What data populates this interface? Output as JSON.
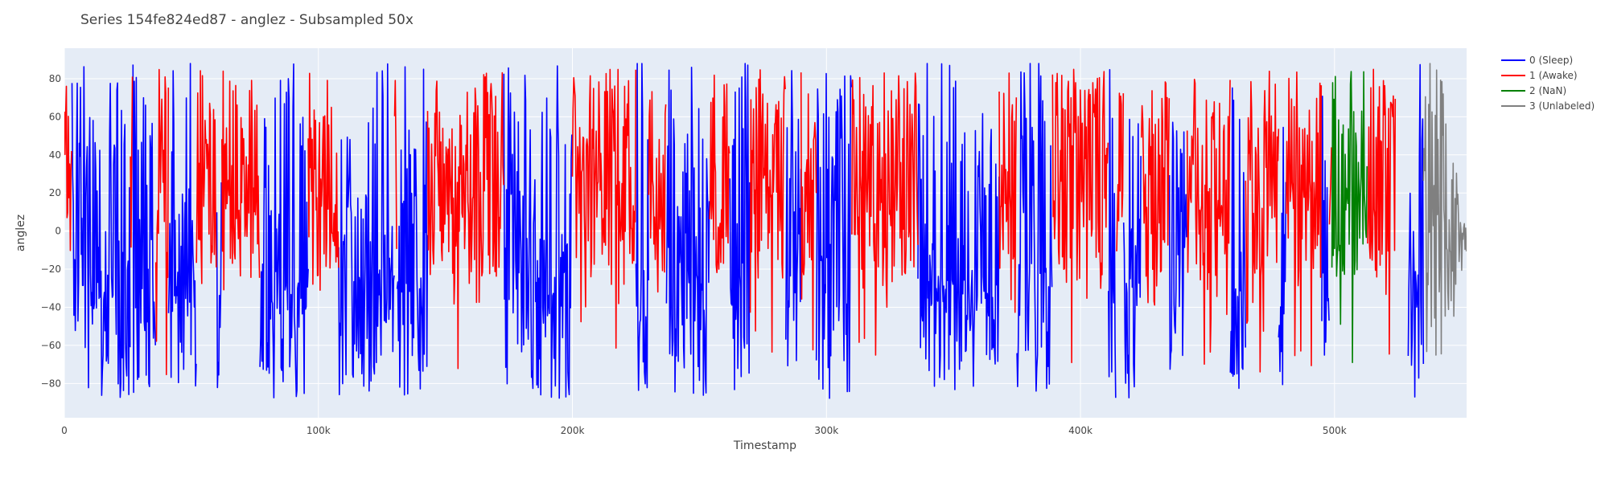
{
  "chart_data": {
    "type": "line",
    "title": "Series 154fe824ed87 - anglez - Subsampled 50x",
    "xlabel": "Timestamp",
    "ylabel": "anglez",
    "xlim": [
      0,
      552000
    ],
    "ylim": [
      -98,
      96
    ],
    "x_ticks": [
      0,
      100000,
      200000,
      300000,
      400000,
      500000
    ],
    "x_tick_labels": [
      "0",
      "100k",
      "200k",
      "300k",
      "400k",
      "500k"
    ],
    "y_ticks": [
      -80,
      -60,
      -40,
      -20,
      0,
      20,
      40,
      60,
      80
    ],
    "y_tick_labels": [
      "−80",
      "−60",
      "−40",
      "−20",
      "0",
      "20",
      "40",
      "60",
      "80"
    ],
    "grid": true,
    "legend_position": "top-right",
    "series": [
      {
        "name": "0 (Sleep)",
        "color": "#0000ff",
        "segments": [
          [
            3000,
            26000
          ],
          [
            27000,
            36000
          ],
          [
            41000,
            52000
          ],
          [
            60000,
            62000
          ],
          [
            77000,
            96000
          ],
          [
            108000,
            130000
          ],
          [
            131000,
            143000
          ],
          [
            173000,
            200000
          ],
          [
            225000,
            230000
          ],
          [
            237000,
            254000
          ],
          [
            262000,
            270000
          ],
          [
            284000,
            290000
          ],
          [
            296000,
            310000
          ],
          [
            336000,
            368000
          ],
          [
            375000,
            389000
          ],
          [
            411000,
            414000
          ],
          [
            417000,
            424000
          ],
          [
            435000,
            442000
          ],
          [
            459000,
            465000
          ],
          [
            478000,
            481000
          ],
          [
            495000,
            498000
          ],
          [
            529000,
            535000
          ]
        ]
      },
      {
        "name": "1 (Awake)",
        "color": "#ff0000",
        "segments": [
          [
            0,
            3000
          ],
          [
            26000,
            27000
          ],
          [
            36000,
            41000
          ],
          [
            52000,
            60000
          ],
          [
            62000,
            77000
          ],
          [
            96000,
            108000
          ],
          [
            130000,
            131000
          ],
          [
            143000,
            173000
          ],
          [
            200000,
            225000
          ],
          [
            230000,
            237000
          ],
          [
            254000,
            262000
          ],
          [
            270000,
            284000
          ],
          [
            290000,
            296000
          ],
          [
            310000,
            336000
          ],
          [
            368000,
            375000
          ],
          [
            389000,
            411000
          ],
          [
            414000,
            417000
          ],
          [
            424000,
            435000
          ],
          [
            442000,
            459000
          ],
          [
            465000,
            478000
          ],
          [
            481000,
            495000
          ],
          [
            498000,
            499000
          ],
          [
            513000,
            524000
          ]
        ]
      },
      {
        "name": "2 (NaN)",
        "color": "#008000",
        "segments": [
          [
            499000,
            513000
          ]
        ]
      },
      {
        "name": "3 (Unlabeled)",
        "color": "#808080",
        "segments": [
          [
            535000,
            552000
          ]
        ]
      }
    ]
  }
}
